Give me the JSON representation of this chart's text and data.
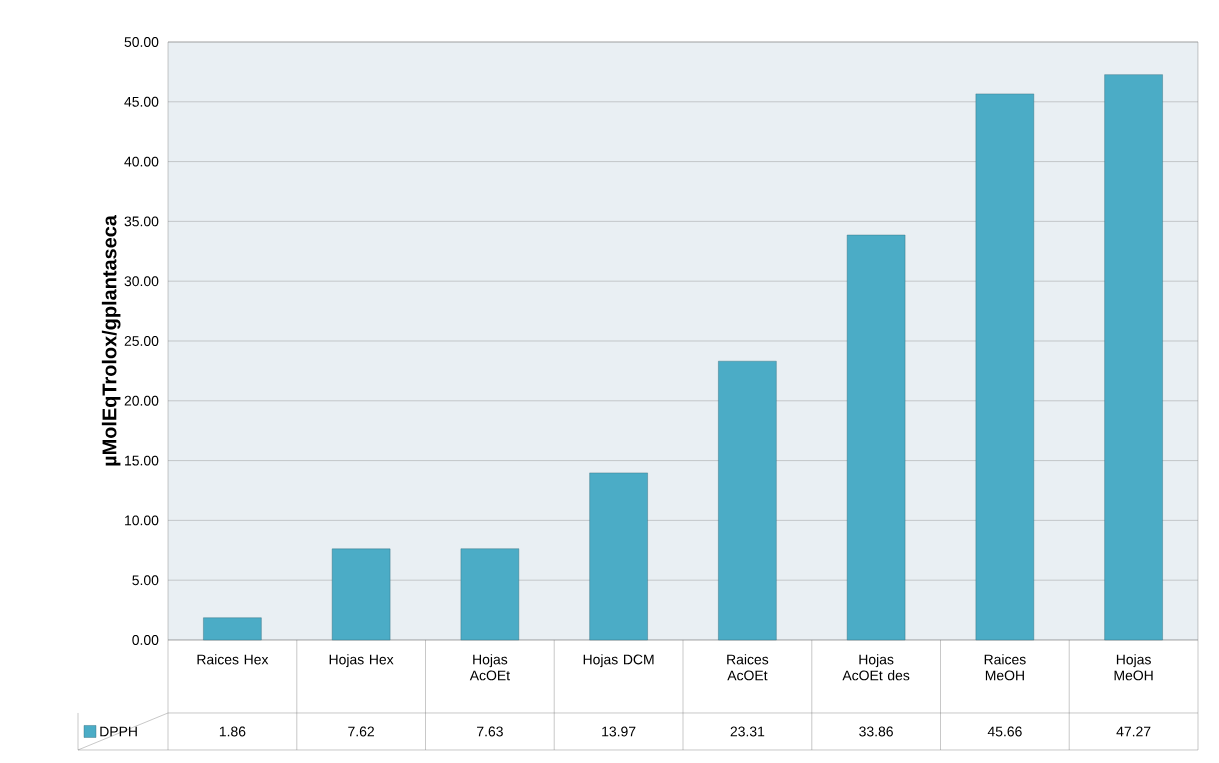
{
  "chart_data": {
    "type": "bar",
    "ylabel": "µMolEqTrolox/gplantaseca",
    "categories": [
      "Raices Hex",
      "Hojas Hex",
      "Hojas AcOEt",
      "Hojas DCM",
      "Raices AcOEt",
      "Hojas AcOEt des",
      "Raices MeOH",
      "Hojas MeOH"
    ],
    "series": [
      {
        "name": "DPPH",
        "color": "#4bacc6",
        "values": [
          1.86,
          7.62,
          7.63,
          13.97,
          23.31,
          33.86,
          45.66,
          47.27
        ],
        "value_labels": [
          "1.86",
          "7.62",
          "7.63",
          "13.97",
          "23.31",
          "33.86",
          "45.66",
          "47.27"
        ]
      }
    ],
    "ylim": [
      0,
      50
    ],
    "yticks": [
      {
        "value": 0,
        "label": "0.00"
      },
      {
        "value": 5,
        "label": "5.00"
      },
      {
        "value": 10,
        "label": "10.00"
      },
      {
        "value": 15,
        "label": "15.00"
      },
      {
        "value": 20,
        "label": "20.00"
      },
      {
        "value": 25,
        "label": "25.00"
      },
      {
        "value": 30,
        "label": "30.00"
      },
      {
        "value": 35,
        "label": "35.00"
      },
      {
        "value": 40,
        "label": "40.00"
      },
      {
        "value": 45,
        "label": "45.00"
      },
      {
        "value": 50,
        "label": "50.00"
      }
    ],
    "grid": "y",
    "legend": "bottom"
  }
}
